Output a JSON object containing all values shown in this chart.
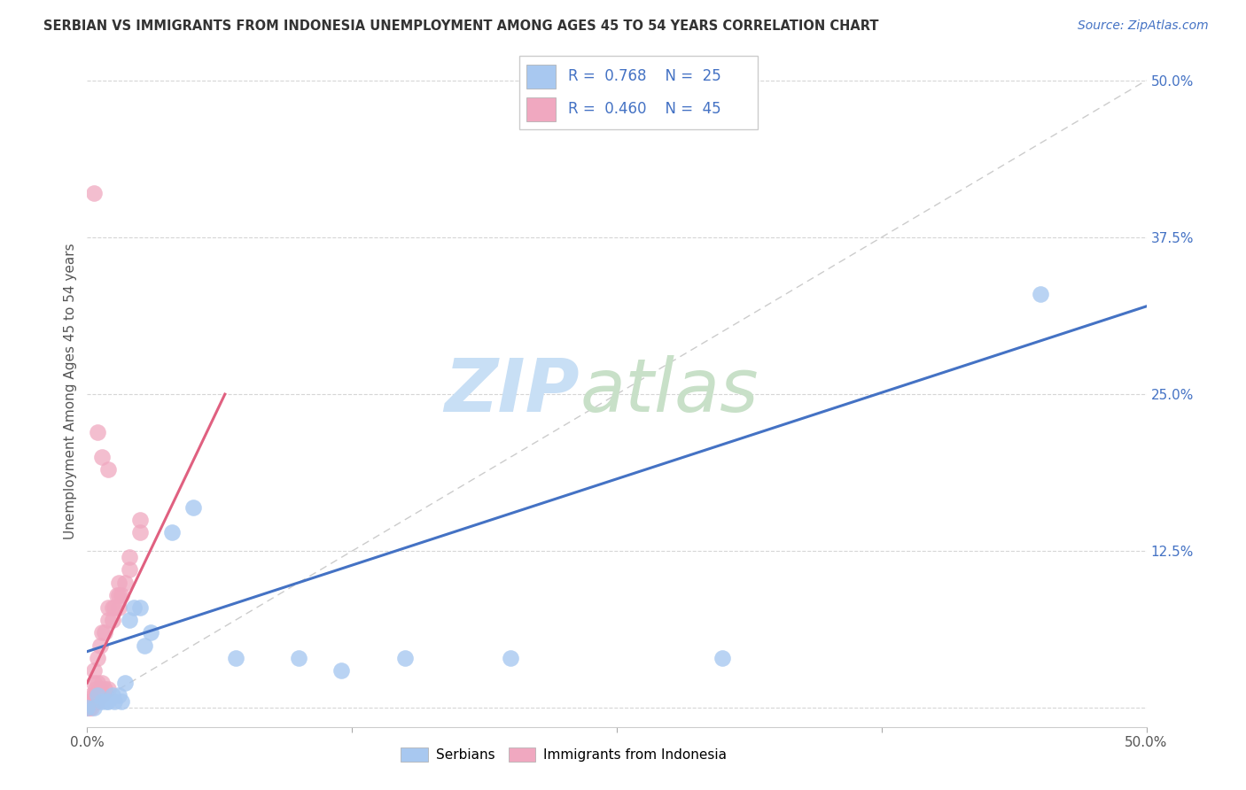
{
  "title": "SERBIAN VS IMMIGRANTS FROM INDONESIA UNEMPLOYMENT AMONG AGES 45 TO 54 YEARS CORRELATION CHART",
  "source": "Source: ZipAtlas.com",
  "ylabel": "Unemployment Among Ages 45 to 54 years",
  "xlim": [
    0,
    0.5
  ],
  "ylim": [
    -0.015,
    0.52
  ],
  "legend_serbian_R": "0.768",
  "legend_serbian_N": "25",
  "legend_indonesia_R": "0.460",
  "legend_indonesia_N": "45",
  "serbian_color": "#a8c8f0",
  "serbia_edge_color": "#6baed6",
  "indonesia_color": "#f0a8c0",
  "indonesia_edge_color": "#e07090",
  "regression_serbian_color": "#4472c4",
  "regression_indonesia_color": "#e06080",
  "ytick_color": "#4472c4",
  "grid_color": "#cccccc",
  "serbian_scatter": [
    [
      0.0,
      0.0
    ],
    [
      0.003,
      0.0
    ],
    [
      0.005,
      0.01
    ],
    [
      0.007,
      0.005
    ],
    [
      0.009,
      0.005
    ],
    [
      0.01,
      0.005
    ],
    [
      0.012,
      0.01
    ],
    [
      0.013,
      0.005
    ],
    [
      0.015,
      0.01
    ],
    [
      0.016,
      0.005
    ],
    [
      0.018,
      0.02
    ],
    [
      0.02,
      0.07
    ],
    [
      0.022,
      0.08
    ],
    [
      0.025,
      0.08
    ],
    [
      0.027,
      0.05
    ],
    [
      0.03,
      0.06
    ],
    [
      0.04,
      0.14
    ],
    [
      0.05,
      0.16
    ],
    [
      0.07,
      0.04
    ],
    [
      0.1,
      0.04
    ],
    [
      0.12,
      0.03
    ],
    [
      0.15,
      0.04
    ],
    [
      0.2,
      0.04
    ],
    [
      0.3,
      0.04
    ],
    [
      0.45,
      0.33
    ]
  ],
  "indonesia_scatter": [
    [
      0.0,
      0.0
    ],
    [
      0.001,
      0.0
    ],
    [
      0.001,
      0.005
    ],
    [
      0.002,
      0.0
    ],
    [
      0.002,
      0.005
    ],
    [
      0.002,
      0.01
    ],
    [
      0.003,
      0.005
    ],
    [
      0.003,
      0.01
    ],
    [
      0.003,
      0.02
    ],
    [
      0.003,
      0.03
    ],
    [
      0.004,
      0.005
    ],
    [
      0.004,
      0.01
    ],
    [
      0.004,
      0.015
    ],
    [
      0.005,
      0.005
    ],
    [
      0.005,
      0.01
    ],
    [
      0.005,
      0.02
    ],
    [
      0.005,
      0.04
    ],
    [
      0.006,
      0.01
    ],
    [
      0.006,
      0.015
    ],
    [
      0.006,
      0.05
    ],
    [
      0.007,
      0.01
    ],
    [
      0.007,
      0.02
    ],
    [
      0.007,
      0.06
    ],
    [
      0.008,
      0.015
    ],
    [
      0.008,
      0.06
    ],
    [
      0.01,
      0.015
    ],
    [
      0.01,
      0.07
    ],
    [
      0.01,
      0.08
    ],
    [
      0.012,
      0.07
    ],
    [
      0.012,
      0.08
    ],
    [
      0.013,
      0.08
    ],
    [
      0.014,
      0.09
    ],
    [
      0.015,
      0.08
    ],
    [
      0.015,
      0.09
    ],
    [
      0.015,
      0.1
    ],
    [
      0.016,
      0.09
    ],
    [
      0.018,
      0.1
    ],
    [
      0.02,
      0.11
    ],
    [
      0.02,
      0.12
    ],
    [
      0.025,
      0.14
    ],
    [
      0.025,
      0.15
    ],
    [
      0.003,
      0.41
    ],
    [
      0.005,
      0.22
    ],
    [
      0.007,
      0.2
    ],
    [
      0.01,
      0.19
    ]
  ]
}
